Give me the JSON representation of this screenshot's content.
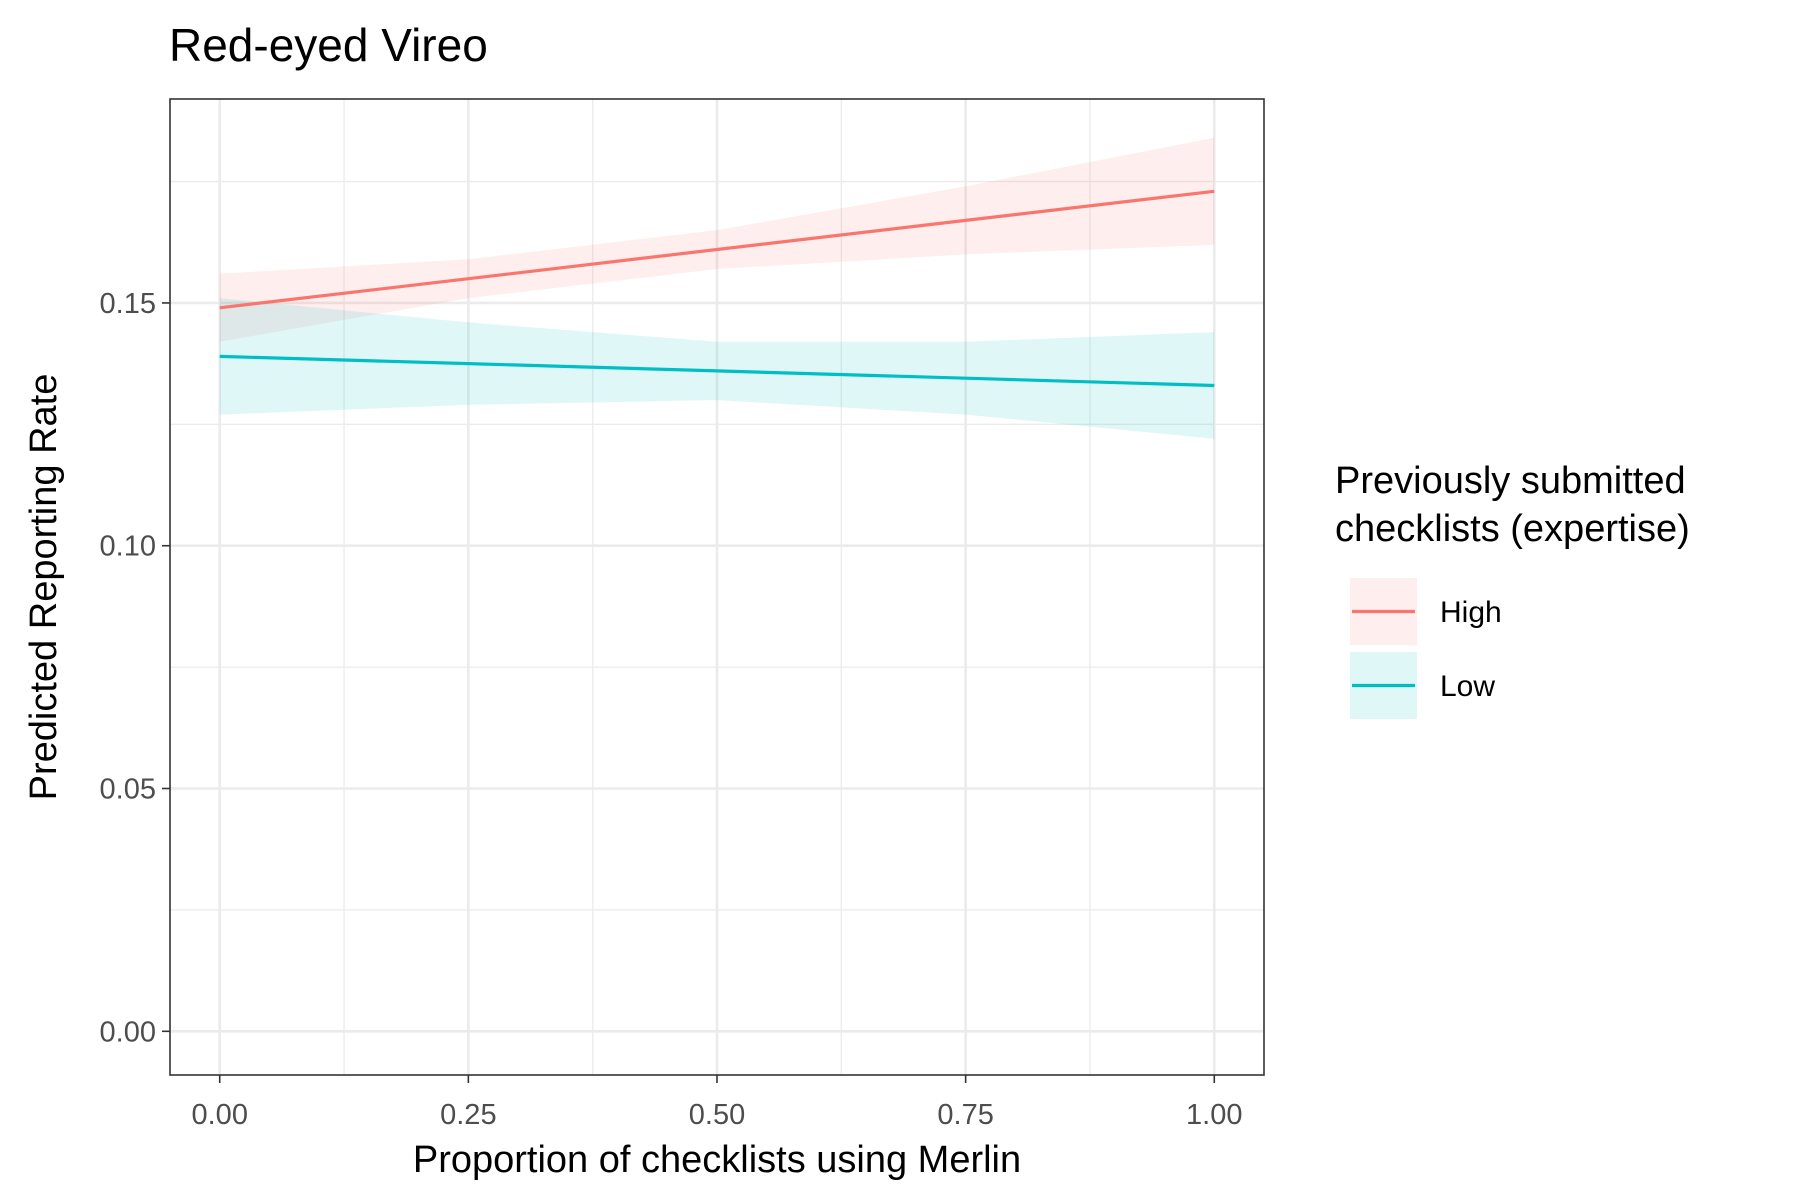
{
  "chart_data": {
    "type": "line",
    "title": "Red-eyed Vireo",
    "xlabel": "Proportion of checklists using Merlin",
    "ylabel": "Predicted Reporting Rate",
    "xlim": [
      -0.05,
      1.05
    ],
    "ylim": [
      -0.009,
      0.192
    ],
    "x_ticks": [
      0,
      0.25,
      0.5,
      0.75,
      1
    ],
    "x_tick_labels": [
      "0.00",
      "0.25",
      "0.50",
      "0.75",
      "1.00"
    ],
    "y_ticks": [
      0,
      0.05,
      0.1,
      0.15
    ],
    "y_tick_labels": [
      "0.00",
      "0.05",
      "0.10",
      "0.15"
    ],
    "x_minor_ticks": [
      0.125,
      0.375,
      0.625,
      0.875
    ],
    "y_minor_ticks": [
      0.025,
      0.075,
      0.125,
      0.175
    ],
    "grid": true,
    "legend": {
      "title_lines": [
        "Previously submitted",
        "checklists (expertise)"
      ],
      "placement": "right"
    },
    "series": [
      {
        "name": "High",
        "color": "#F8766D",
        "band_color": "#F8766D",
        "x": [
          0,
          0.25,
          0.5,
          0.75,
          1
        ],
        "y": [
          0.149,
          0.155,
          0.161,
          0.167,
          0.173
        ],
        "lower": [
          0.142,
          0.151,
          0.157,
          0.16,
          0.162
        ],
        "upper": [
          0.156,
          0.159,
          0.165,
          0.174,
          0.184
        ]
      },
      {
        "name": "Low",
        "color": "#00BFC4",
        "band_color": "#00BFC4",
        "x": [
          0,
          0.25,
          0.5,
          0.75,
          1
        ],
        "y": [
          0.139,
          0.1375,
          0.136,
          0.1345,
          0.133
        ],
        "lower": [
          0.127,
          0.129,
          0.13,
          0.127,
          0.122
        ],
        "upper": [
          0.151,
          0.146,
          0.142,
          0.142,
          0.144
        ]
      }
    ]
  }
}
